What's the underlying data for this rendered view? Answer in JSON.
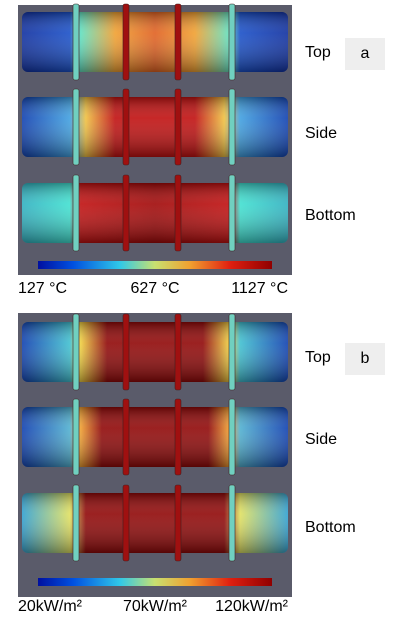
{
  "panels": [
    {
      "letter": "a",
      "rows": [
        "Top",
        "Side",
        "Bottom"
      ],
      "colorbar_labels": [
        "127 °C",
        "627 °C",
        "1127 °C"
      ]
    },
    {
      "letter": "b",
      "rows": [
        "Top",
        "Side",
        "Bottom"
      ],
      "colorbar_labels": [
        "20kW/m²",
        "70kW/m²",
        "120kW/m²"
      ]
    }
  ]
}
